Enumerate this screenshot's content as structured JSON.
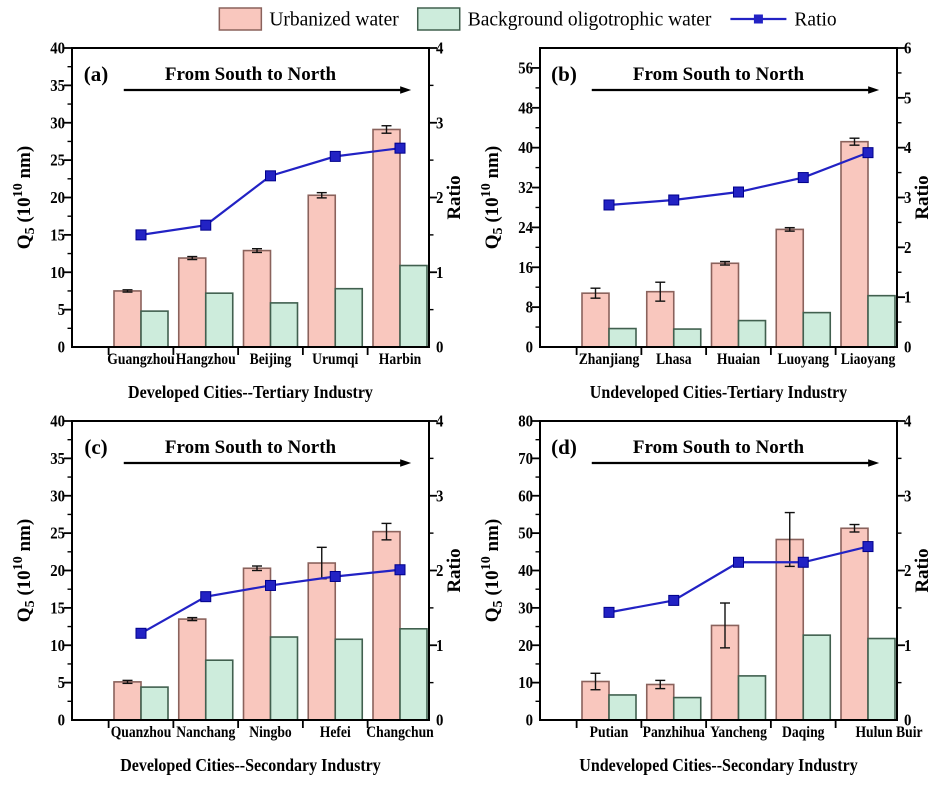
{
  "figure": {
    "background": "#ffffff",
    "text_color": "#000000",
    "legend": {
      "items": [
        {
          "kind": "bar",
          "label": "Urbanized water",
          "fill": "#f9c7be",
          "stroke": "#8a625c"
        },
        {
          "kind": "bar",
          "label": "Background oligotrophic water",
          "fill": "#cdecdc",
          "stroke": "#41604f"
        },
        {
          "kind": "line",
          "label": "Ratio",
          "color": "#2222c4"
        }
      ],
      "position": "top-center"
    },
    "colors": {
      "urbanized_fill": "#f9c7be",
      "urbanized_stroke": "#8a625c",
      "background_fill": "#cdecdc",
      "background_stroke": "#41604f",
      "ratio_line": "#2222c4",
      "error_bar": "#111111",
      "axis": "#000000"
    }
  },
  "chart_data": [
    {
      "type": "bar+line",
      "panel_label": "(a)",
      "annotation": "From South to North",
      "title": "Developed Cities--Tertiary Industry",
      "ylabel_left_rich": [
        [
          "t",
          "Q"
        ],
        [
          "sub",
          "5"
        ],
        [
          "t",
          " (10"
        ],
        [
          "sup",
          "10"
        ],
        [
          "t",
          " nm)"
        ]
      ],
      "ylabel_left": "Q5 (10^10 nm)",
      "ylabel_right": "Ratio",
      "ylim_left": [
        0,
        40
      ],
      "ytick_step_left": 5,
      "ylim_right": [
        0,
        4
      ],
      "ytick_step_right": 1,
      "categories": [
        "Guangzhou",
        "Hangzhou",
        "Beijing",
        "Urumqi",
        "Harbin"
      ],
      "series": [
        {
          "name": "Urbanized water",
          "type": "bar",
          "axis": "left",
          "values": [
            7.5,
            11.9,
            12.9,
            20.3,
            29.1
          ],
          "errors": [
            0.15,
            0.2,
            0.25,
            0.35,
            0.5
          ]
        },
        {
          "name": "Background oligotrophic water",
          "type": "bar",
          "axis": "left",
          "values": [
            4.8,
            7.2,
            5.9,
            7.8,
            10.9
          ]
        },
        {
          "name": "Ratio",
          "type": "line",
          "axis": "right",
          "values": [
            1.5,
            1.63,
            2.29,
            2.55,
            2.66
          ]
        }
      ]
    },
    {
      "type": "bar+line",
      "panel_label": "(b)",
      "annotation": "From South to North",
      "title": "Undeveloped Cities-Tertiary Industry",
      "ylabel_left_rich": [
        [
          "t",
          "Q"
        ],
        [
          "sub",
          "5"
        ],
        [
          "t",
          " (10"
        ],
        [
          "sup",
          "10"
        ],
        [
          "t",
          " nm)"
        ]
      ],
      "ylabel_left": "Q5 (10^10 nm)",
      "ylabel_right": "Ratio",
      "ylim_left": [
        0,
        60
      ],
      "ytick_step_left": 8,
      "ylim_right": [
        0,
        6
      ],
      "ytick_step_right": 1,
      "categories": [
        "Zhanjiang",
        "Lhasa",
        "Huaian",
        "Luoyang",
        "Liaoyang"
      ],
      "series": [
        {
          "name": "Urbanized water",
          "type": "bar",
          "axis": "left",
          "values": [
            10.8,
            11.1,
            16.8,
            23.6,
            41.2
          ],
          "errors": [
            1.0,
            1.9,
            0.35,
            0.35,
            0.7
          ]
        },
        {
          "name": "Background oligotrophic water",
          "type": "bar",
          "axis": "left",
          "values": [
            3.7,
            3.6,
            5.3,
            6.9,
            10.3
          ]
        },
        {
          "name": "Ratio",
          "type": "line",
          "axis": "right",
          "values": [
            2.85,
            2.95,
            3.11,
            3.4,
            3.9
          ]
        }
      ]
    },
    {
      "type": "bar+line",
      "panel_label": "(c)",
      "annotation": "From South to North",
      "title": "Developed Cities--Secondary Industry",
      "ylabel_left_rich": [
        [
          "t",
          "Q"
        ],
        [
          "sub",
          "5"
        ],
        [
          "t",
          " (10"
        ],
        [
          "sup",
          "10"
        ],
        [
          "t",
          " nm)"
        ]
      ],
      "ylabel_left": "Q5 (10^10 nm)",
      "ylabel_right": "Ratio",
      "ylim_left": [
        0,
        40
      ],
      "ytick_step_left": 5,
      "ylim_right": [
        0,
        4
      ],
      "ytick_step_right": 1,
      "categories": [
        "Quanzhou",
        "Nanchang",
        "Ningbo",
        "Hefei",
        "Changchun"
      ],
      "series": [
        {
          "name": "Urbanized water",
          "type": "bar",
          "axis": "left",
          "values": [
            5.1,
            13.5,
            20.3,
            21.0,
            25.2
          ],
          "errors": [
            0.2,
            0.2,
            0.3,
            2.1,
            1.1
          ]
        },
        {
          "name": "Background oligotrophic water",
          "type": "bar",
          "axis": "left",
          "values": [
            4.4,
            8.0,
            11.1,
            10.8,
            12.2
          ]
        },
        {
          "name": "Ratio",
          "type": "line",
          "axis": "right",
          "values": [
            1.16,
            1.65,
            1.8,
            1.92,
            2.01
          ]
        }
      ]
    },
    {
      "type": "bar+line",
      "panel_label": "(d)",
      "annotation": "From South to North",
      "title": "Undeveloped Cities--Secondary Industry",
      "ylabel_left_rich": [
        [
          "t",
          "Q"
        ],
        [
          "sub",
          "5"
        ],
        [
          "t",
          " (10"
        ],
        [
          "sup",
          "10"
        ],
        [
          "t",
          " nm)"
        ]
      ],
      "ylabel_left": "Q5 (10^10 nm)",
      "ylabel_right": "Ratio",
      "ylim_left": [
        0,
        80
      ],
      "ytick_step_left": 10,
      "ylim_right": [
        0,
        4
      ],
      "ytick_step_right": 1,
      "categories": [
        "Putian",
        "Panzhihua",
        "Yancheng",
        "Daqing",
        "Hulun Buir"
      ],
      "series": [
        {
          "name": "Urbanized water",
          "type": "bar",
          "axis": "left",
          "values": [
            10.3,
            9.5,
            25.3,
            48.3,
            51.3
          ],
          "errors": [
            2.2,
            1.1,
            6.0,
            7.2,
            1.0
          ]
        },
        {
          "name": "Background oligotrophic water",
          "type": "bar",
          "axis": "left",
          "values": [
            6.7,
            6.0,
            11.8,
            22.7,
            21.8
          ]
        },
        {
          "name": "Ratio",
          "type": "line",
          "axis": "right",
          "values": [
            1.44,
            1.6,
            2.11,
            2.11,
            2.32
          ]
        }
      ]
    }
  ]
}
